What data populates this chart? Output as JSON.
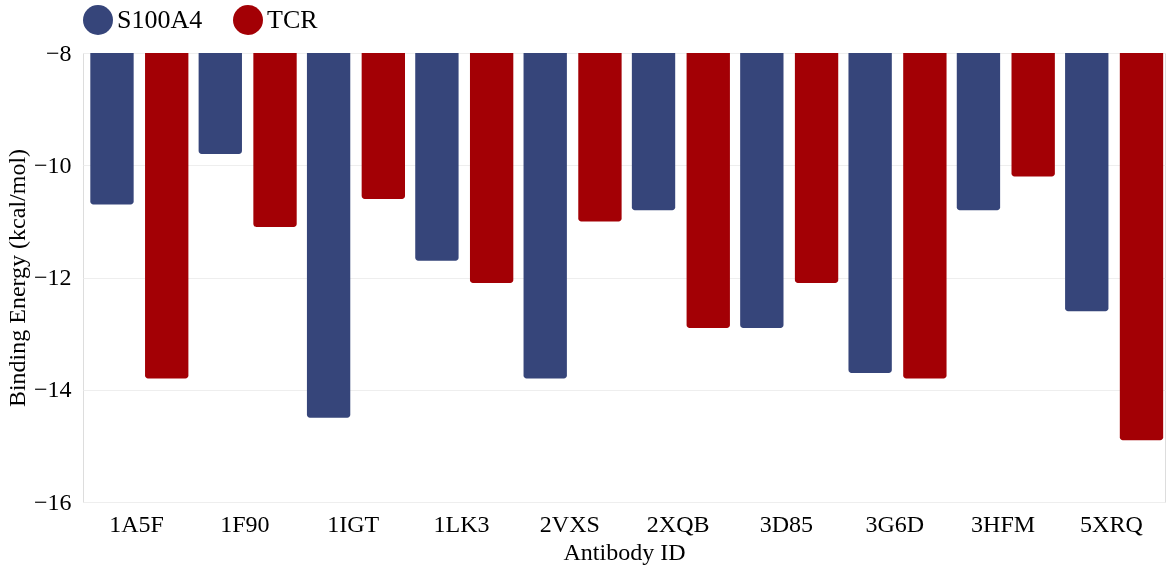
{
  "chart_data": {
    "type": "bar",
    "xlabel": "Antibody ID",
    "ylabel": "Binding Energy (kcal/mol)",
    "categories": [
      "1A5F",
      "1F90",
      "1IGT",
      "1LK3",
      "2VXS",
      "2XQB",
      "3D85",
      "3G6D",
      "3HFM",
      "5XRQ"
    ],
    "series": [
      {
        "name": "S100A4",
        "color": "#36457a",
        "values": [
          -10.7,
          -9.8,
          -14.5,
          -11.7,
          -13.8,
          -10.8,
          -12.9,
          -13.7,
          -10.8,
          -12.6
        ]
      },
      {
        "name": "TCR",
        "color": "#a30005",
        "values": [
          -13.8,
          -11.1,
          -10.6,
          -12.1,
          -11.0,
          -12.9,
          -12.1,
          -13.8,
          -10.2,
          -14.9
        ]
      }
    ],
    "ylim": [
      -16,
      -8
    ],
    "yticks": [
      -16,
      -14,
      -12,
      -10,
      -8
    ],
    "grid": "y",
    "legend": "top"
  }
}
